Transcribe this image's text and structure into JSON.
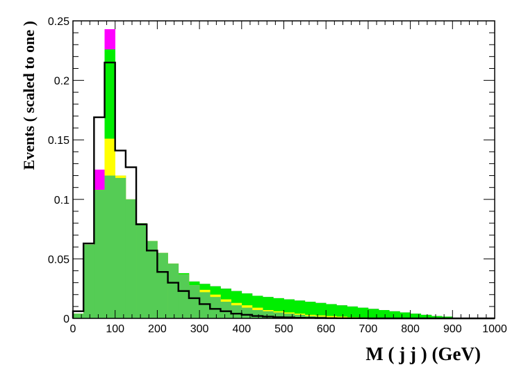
{
  "chart_data": {
    "type": "bar",
    "xlabel": "M ( j j ) (GeV)",
    "ylabel": "Events  ( scaled to one )",
    "xlim": [
      0,
      1000
    ],
    "ylim": [
      0,
      0.25
    ],
    "x_ticks": [
      0,
      100,
      200,
      300,
      400,
      500,
      600,
      700,
      800,
      900,
      1000
    ],
    "y_ticks": [
      0,
      0.05,
      0.1,
      0.15,
      0.2,
      0.25
    ],
    "y_tick_labels": [
      "0",
      "0.05",
      "0.1",
      "0.15",
      "0.2",
      "0.25"
    ],
    "bin_width": 25,
    "bin_edges_start": [
      0,
      25,
      50,
      75,
      100,
      125,
      150,
      175,
      200,
      225,
      250,
      275,
      300,
      325,
      350,
      375,
      400,
      425,
      450,
      475,
      500,
      525,
      550,
      575,
      600,
      625,
      650,
      675,
      700,
      725,
      750,
      775,
      800,
      825,
      850,
      875,
      900,
      925,
      950,
      975
    ],
    "grid": false,
    "legend": "none",
    "series": [
      {
        "style": "filled",
        "color": "#ff00ff",
        "values": [
          0.004,
          0.062,
          0.125,
          0.243,
          0.12,
          0.1,
          0.08,
          0.065,
          0.055,
          0.046,
          0.038,
          0.031,
          0.029,
          0.027,
          0.025,
          0.023,
          0.021,
          0.019,
          0.018,
          0.017,
          0.016,
          0.015,
          0.014,
          0.013,
          0.012,
          0.011,
          0.01,
          0.009,
          0.008,
          0.007,
          0.006,
          0.005,
          0.004,
          0.003,
          0.002,
          0.0015,
          0.0005,
          0.0003,
          0.0001,
          0.0001
        ]
      },
      {
        "style": "filled",
        "color": "#00ee00",
        "values": [
          0.004,
          0.062,
          0.108,
          0.226,
          0.12,
          0.1,
          0.08,
          0.065,
          0.055,
          0.046,
          0.038,
          0.031,
          0.029,
          0.027,
          0.025,
          0.023,
          0.021,
          0.019,
          0.018,
          0.017,
          0.016,
          0.015,
          0.014,
          0.013,
          0.012,
          0.011,
          0.01,
          0.009,
          0.008,
          0.007,
          0.006,
          0.005,
          0.004,
          0.003,
          0.002,
          0.0015,
          0.0005,
          0.0003,
          0.0001,
          0.0001
        ]
      },
      {
        "style": "filled",
        "color": "#ffff00",
        "values": [
          0.004,
          0.062,
          0.108,
          0.151,
          0.12,
          0.1,
          0.08,
          0.065,
          0.055,
          0.046,
          0.037,
          0.028,
          0.024,
          0.02,
          0.016,
          0.013,
          0.011,
          0.009,
          0.007,
          0.006,
          0.005,
          0.004,
          0.003,
          0.0025,
          0.002,
          0.0015,
          0.001,
          0.0008,
          0.0006,
          0.0004,
          0.0003,
          0.0002,
          0.0002,
          0.0001,
          0.0001,
          0.0001,
          0,
          0,
          0,
          0
        ]
      },
      {
        "style": "filled",
        "color": "#55cc55",
        "values": [
          0.004,
          0.062,
          0.108,
          0.12,
          0.118,
          0.1,
          0.08,
          0.065,
          0.055,
          0.046,
          0.037,
          0.028,
          0.022,
          0.018,
          0.014,
          0.011,
          0.009,
          0.007,
          0.006,
          0.005,
          0.004,
          0.003,
          0.002,
          0.0015,
          0.001,
          0.0008,
          0.0006,
          0.0004,
          0.0003,
          0.0002,
          0.0002,
          0.0001,
          0.0001,
          0.0001,
          0,
          0,
          0,
          0,
          0,
          0
        ]
      },
      {
        "style": "outline",
        "color": "#000000",
        "values": [
          0.006,
          0.063,
          0.169,
          0.215,
          0.141,
          0.127,
          0.079,
          0.057,
          0.039,
          0.03,
          0.023,
          0.017,
          0.012,
          0.008,
          0.006,
          0.004,
          0.003,
          0.002,
          0.0015,
          0.001,
          0.0008,
          0.0005,
          0.0004,
          0.0003,
          0.0002,
          0.0001,
          0.0001,
          0.0001,
          0,
          0,
          0,
          0,
          0,
          0,
          0,
          0,
          0,
          0,
          0,
          0
        ]
      }
    ]
  }
}
